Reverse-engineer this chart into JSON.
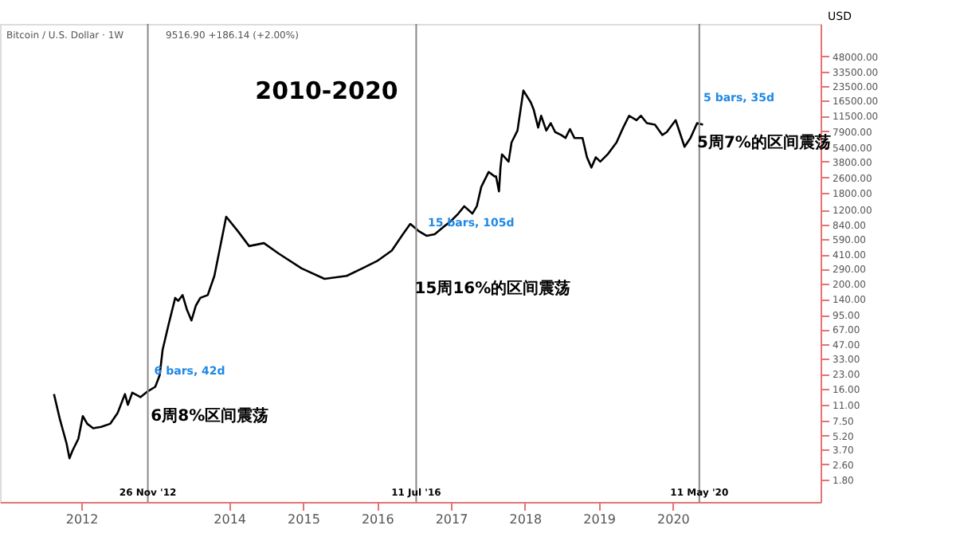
{
  "chart_data": {
    "type": "line",
    "title": "2010-2020",
    "ylabel": "USD",
    "annotations": [
      "Bitcoin / U.S. Dollar · 1W",
      "9516.90 +186.14 (+2.00%)",
      {
        "text": "6周8%区间震荡",
        "x": 2012.94,
        "y": 8.3
      },
      {
        "text": "15周16%的区间震荡",
        "x": 2016.51,
        "y": 180
      },
      {
        "text": "5周7%的区间震荡",
        "x": 2020.33,
        "y": 6050
      },
      {
        "text": "6 bars, 42d",
        "x": 2012.9,
        "y": 13.1
      },
      {
        "text": "15 bars, 105d",
        "x": 2016.6,
        "y": 470
      },
      {
        "text": "5 bars, 35d",
        "x": 2020.33,
        "y": 9630
      }
    ],
    "series": [
      {
        "color": "#000000",
        "x": [
          2011.63,
          2011.71,
          2011.8,
          2011.84,
          2011.88,
          2011.96,
          2012.02,
          2012.08,
          2012.16,
          2012.27,
          2012.39,
          2012.49,
          2012.59,
          2012.63,
          2012.69,
          2012.8,
          2012.9,
          2013.0,
          2013.06,
          2013.1,
          2013.18,
          2013.27,
          2013.31,
          2013.37,
          2013.43,
          2013.49,
          2013.55,
          2013.61,
          2013.71,
          2013.8,
          2013.96,
          2014.12,
          2014.27,
          2014.47,
          2014.67,
          2014.98,
          2015.29,
          2015.59,
          2015.8,
          2016.0,
          2016.2,
          2016.35,
          2016.45,
          2016.57,
          2016.67,
          2016.78,
          2016.9,
          2017.0,
          2017.1,
          2017.18,
          2017.29,
          2017.35,
          2017.41,
          2017.51,
          2017.59,
          2017.61,
          2017.65,
          2017.67,
          2017.69,
          2017.78,
          2017.82,
          2017.9,
          2017.98,
          2018.08,
          2018.12,
          2018.18,
          2018.22,
          2018.29,
          2018.35,
          2018.41,
          2018.49,
          2018.55,
          2018.61,
          2018.67,
          2018.73,
          2018.78,
          2018.84,
          2018.9,
          2018.96,
          2019.02,
          2019.12,
          2019.24,
          2019.33,
          2019.41,
          2019.51,
          2019.57,
          2019.65,
          2019.76,
          2019.86,
          2019.92,
          2020.04,
          2020.16,
          2020.24,
          2020.33,
          2020.41
        ],
        "values": [
          14.1,
          7.7,
          4.3,
          3.0,
          3.6,
          4.8,
          8.3,
          6.9,
          6.2,
          6.4,
          6.9,
          8.9,
          14.1,
          10.9,
          14.6,
          13.1,
          15.1,
          16.8,
          22.2,
          41,
          75,
          143,
          133,
          153,
          107,
          83,
          119,
          143,
          153,
          243,
          1010,
          710,
          498,
          535,
          416,
          291,
          226,
          243,
          291,
          347,
          447,
          662,
          850,
          710,
          638,
          662,
          790,
          910,
          1090,
          1300,
          1090,
          1300,
          2070,
          2970,
          2670,
          2670,
          1860,
          3300,
          4540,
          3810,
          6050,
          8050,
          21100,
          15860,
          13260,
          8650,
          11500,
          8050,
          9630,
          7760,
          7230,
          6730,
          8340,
          6730,
          6730,
          6730,
          4230,
          3300,
          4230,
          3810,
          4540,
          6050,
          8650,
          11500,
          10340,
          11500,
          9630,
          9280,
          7230,
          7760,
          10340,
          5440,
          6730,
          9630,
          9280
        ]
      }
    ],
    "xlim": [
      2010.9,
      2022.0
    ],
    "xticks": [
      2012,
      2014,
      2015,
      2016,
      2017,
      2018,
      2019,
      2020
    ],
    "ylim": [
      1.05,
      105000
    ],
    "log": true,
    "yticks": [
      {
        "value": 1.8,
        "label": "1.80"
      },
      {
        "value": 2.6,
        "label": "2.60"
      },
      {
        "value": 3.7,
        "label": "3.70"
      },
      {
        "value": 5.2,
        "label": "5.20"
      },
      {
        "value": 7.5,
        "label": "7.50"
      },
      {
        "value": 11,
        "label": "11.00"
      },
      {
        "value": 16,
        "label": "16.00"
      },
      {
        "value": 23,
        "label": "23.00"
      },
      {
        "value": 33,
        "label": "33.00"
      },
      {
        "value": 47,
        "label": "47.00"
      },
      {
        "value": 67,
        "label": "67.00"
      },
      {
        "value": 95,
        "label": "95.00"
      },
      {
        "value": 140,
        "label": "140.00"
      },
      {
        "value": 200,
        "label": "200.00"
      },
      {
        "value": 290,
        "label": "290.00"
      },
      {
        "value": 410,
        "label": "410.00"
      },
      {
        "value": 590,
        "label": "590.00"
      },
      {
        "value": 840,
        "label": "840.00"
      },
      {
        "value": 1200,
        "label": "1200.00"
      },
      {
        "value": 1800,
        "label": "1800.00"
      },
      {
        "value": 2600,
        "label": "2600.00"
      },
      {
        "value": 3800,
        "label": "3800.00"
      },
      {
        "value": 5400,
        "label": "5400.00"
      },
      {
        "value": 7900,
        "label": "7900.00"
      },
      {
        "value": 11500,
        "label": "11500.00"
      },
      {
        "value": 16500,
        "label": "16500.00"
      },
      {
        "value": 23500,
        "label": "23500.00"
      },
      {
        "value": 33500,
        "label": "33500.00"
      },
      {
        "value": 48000,
        "label": "48000.00"
      }
    ],
    "ref_lines": [
      {
        "axis": "x",
        "value": 2012.9,
        "label": "26 Nov '12",
        "color": "#888888"
      },
      {
        "axis": "x",
        "value": 2016.53,
        "label": "11 Jul '16",
        "color": "#888888"
      },
      {
        "axis": "x",
        "value": 2020.36,
        "label": "11 May '20",
        "color": "#888888"
      }
    ],
    "grid": false,
    "line_style": "solid",
    "marker": "none"
  }
}
